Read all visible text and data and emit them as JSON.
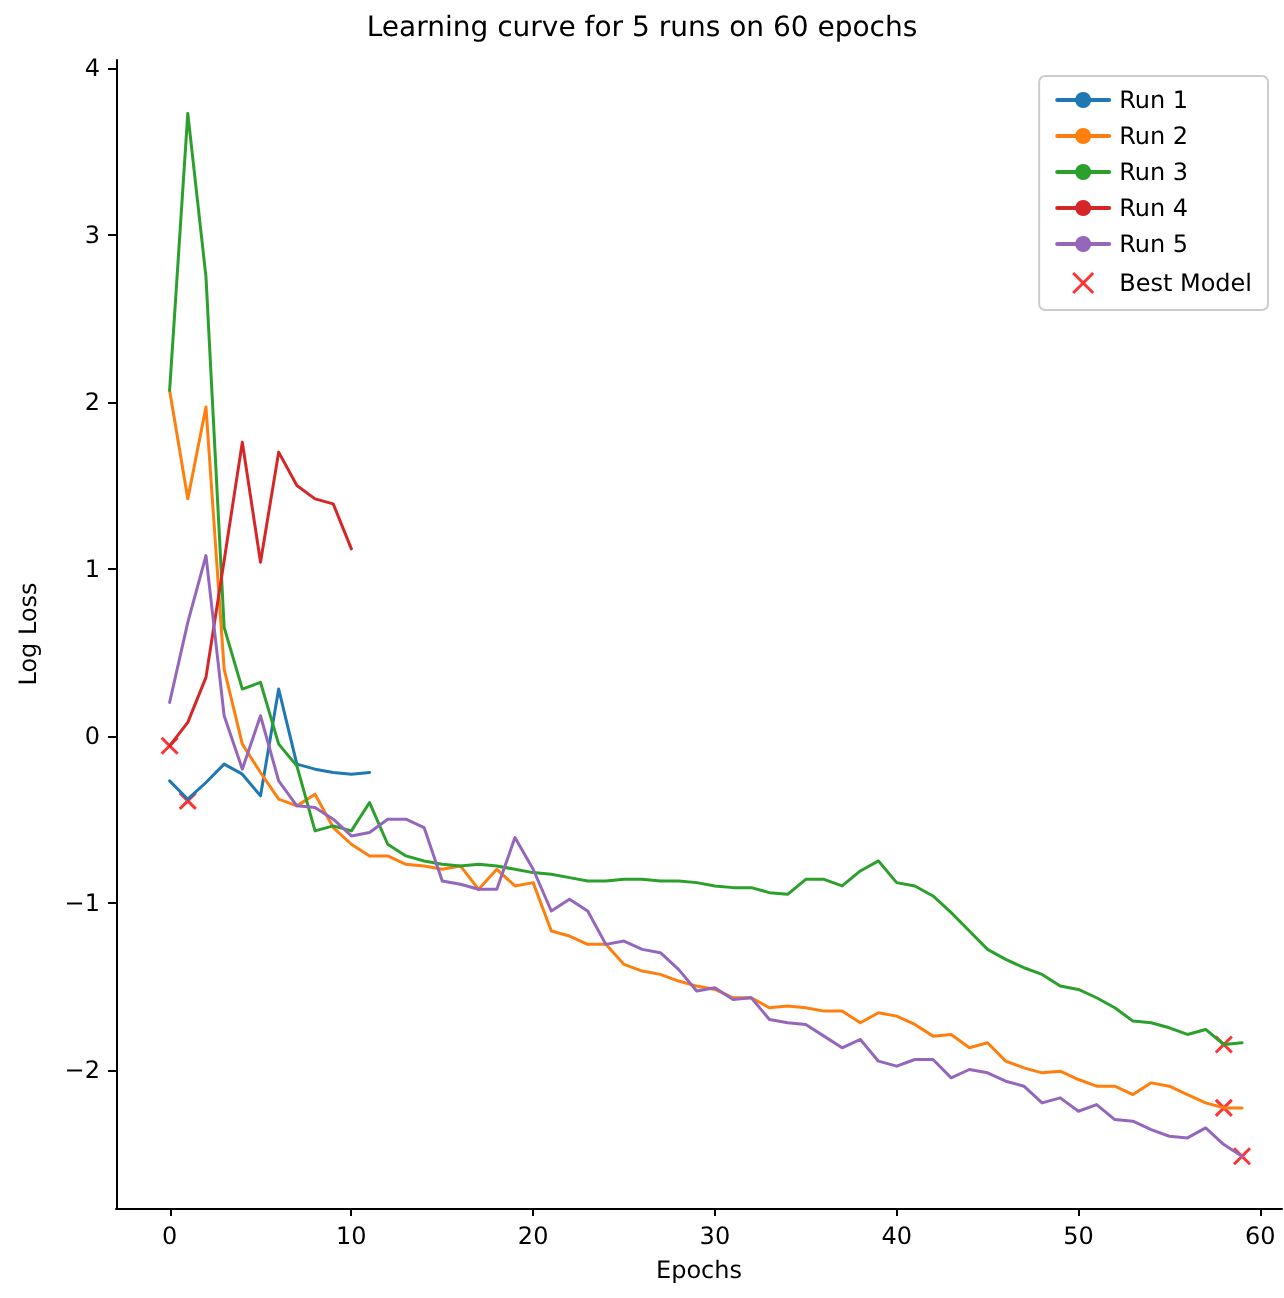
{
  "chart_data": {
    "type": "line",
    "title": "Learning curve for 5 runs on 60 epochs",
    "xlabel": "Epochs",
    "ylabel": "Log Loss",
    "xlim": [
      -2.95,
      61.2
    ],
    "ylim": [
      -2.83,
      4.05
    ],
    "xticks": [
      0,
      10,
      20,
      30,
      40,
      50,
      60
    ],
    "yticks": [
      {
        "value": -2,
        "label": "−2"
      },
      {
        "value": -1,
        "label": "−1"
      },
      0,
      1,
      2,
      3,
      4
    ],
    "grid": false,
    "legend": "top right",
    "marker": "none",
    "line_style": "solid",
    "series": [
      {
        "name": "Run 1",
        "color": "#1f77b4",
        "x": [
          0,
          1,
          2,
          3,
          4,
          5,
          6,
          7,
          8,
          9,
          10,
          11
        ],
        "values": [
          -0.27,
          -0.38,
          -0.28,
          -0.17,
          -0.23,
          -0.36,
          0.28,
          -0.17,
          -0.2,
          -0.22,
          -0.23,
          -0.22
        ]
      },
      {
        "name": "Run 2",
        "color": "#ff7f0e",
        "x": [
          0,
          1,
          2,
          3,
          4,
          5,
          6,
          7,
          8,
          9,
          10,
          11,
          12,
          13,
          14,
          15,
          16,
          17,
          18,
          19,
          20,
          21,
          22,
          23,
          24,
          25,
          26,
          27,
          28,
          29,
          30,
          31,
          32,
          33,
          34,
          35,
          36,
          37,
          38,
          39,
          40,
          41,
          42,
          43,
          44,
          45,
          46,
          47,
          48,
          49,
          50,
          51,
          52,
          53,
          54,
          55,
          56,
          57,
          58,
          59
        ],
        "values": [
          2.07,
          1.42,
          1.97,
          0.4,
          -0.05,
          -0.22,
          -0.38,
          -0.42,
          -0.35,
          -0.55,
          -0.65,
          -0.72,
          -0.72,
          -0.77,
          -0.78,
          -0.8,
          -0.78,
          -0.92,
          -0.8,
          -0.9,
          -0.88,
          -1.17,
          -1.2,
          -1.25,
          -1.25,
          -1.37,
          -1.41,
          -1.43,
          -1.47,
          -1.5,
          -1.52,
          -1.57,
          -1.57,
          -1.63,
          -1.62,
          -1.63,
          -1.65,
          -1.65,
          -1.72,
          -1.66,
          -1.68,
          -1.73,
          -1.8,
          -1.79,
          -1.87,
          -1.84,
          -1.95,
          -1.99,
          -2.02,
          -2.01,
          -2.06,
          -2.1,
          -2.1,
          -2.15,
          -2.08,
          -2.1,
          -2.15,
          -2.2,
          -2.23,
          -2.23
        ]
      },
      {
        "name": "Run 3",
        "color": "#2ca02c",
        "x": [
          0,
          1,
          2,
          3,
          4,
          5,
          6,
          7,
          8,
          9,
          10,
          11,
          12,
          13,
          14,
          15,
          16,
          17,
          18,
          19,
          20,
          21,
          22,
          23,
          24,
          25,
          26,
          27,
          28,
          29,
          30,
          31,
          32,
          33,
          34,
          35,
          36,
          37,
          38,
          39,
          40,
          41,
          42,
          43,
          44,
          45,
          46,
          47,
          48,
          49,
          50,
          51,
          52,
          53,
          54,
          55,
          56,
          57,
          58,
          59
        ],
        "values": [
          2.07,
          3.73,
          2.75,
          0.65,
          0.28,
          0.32,
          -0.05,
          -0.18,
          -0.57,
          -0.54,
          -0.57,
          -0.4,
          -0.65,
          -0.72,
          -0.75,
          -0.77,
          -0.78,
          -0.77,
          -0.78,
          -0.8,
          -0.82,
          -0.83,
          -0.85,
          -0.87,
          -0.87,
          -0.86,
          -0.86,
          -0.87,
          -0.87,
          -0.88,
          -0.9,
          -0.91,
          -0.91,
          -0.94,
          -0.95,
          -0.86,
          -0.86,
          -0.9,
          -0.81,
          -0.75,
          -0.88,
          -0.9,
          -0.96,
          -1.06,
          -1.17,
          -1.28,
          -1.34,
          -1.39,
          -1.43,
          -1.5,
          -1.52,
          -1.57,
          -1.63,
          -1.71,
          -1.72,
          -1.75,
          -1.79,
          -1.76,
          -1.85,
          -1.84
        ]
      },
      {
        "name": "Run 4",
        "color": "#d62728",
        "x": [
          0,
          1,
          2,
          3,
          4,
          5,
          6,
          7,
          8,
          9,
          10
        ],
        "values": [
          -0.06,
          0.08,
          0.35,
          1.05,
          1.76,
          1.04,
          1.7,
          1.5,
          1.42,
          1.39,
          1.12
        ]
      },
      {
        "name": "Run 5",
        "color": "#9467bd",
        "x": [
          0,
          1,
          2,
          3,
          4,
          5,
          6,
          7,
          8,
          9,
          10,
          11,
          12,
          13,
          14,
          15,
          16,
          17,
          18,
          19,
          20,
          21,
          22,
          23,
          24,
          25,
          26,
          27,
          28,
          29,
          30,
          31,
          32,
          33,
          34,
          35,
          36,
          37,
          38,
          39,
          40,
          41,
          42,
          43,
          44,
          45,
          46,
          47,
          48,
          49,
          50,
          51,
          52,
          53,
          54,
          55,
          56,
          57,
          58,
          59
        ],
        "values": [
          0.2,
          0.68,
          1.08,
          0.12,
          -0.2,
          0.12,
          -0.27,
          -0.42,
          -0.43,
          -0.5,
          -0.6,
          -0.58,
          -0.5,
          -0.5,
          -0.55,
          -0.87,
          -0.89,
          -0.92,
          -0.92,
          -0.61,
          -0.8,
          -1.05,
          -0.98,
          -1.05,
          -1.25,
          -1.23,
          -1.28,
          -1.3,
          -1.4,
          -1.53,
          -1.51,
          -1.58,
          -1.57,
          -1.7,
          -1.72,
          -1.73,
          -1.8,
          -1.87,
          -1.82,
          -1.95,
          -1.98,
          -1.94,
          -1.94,
          -2.05,
          -2.0,
          -2.02,
          -2.07,
          -2.1,
          -2.2,
          -2.17,
          -2.25,
          -2.21,
          -2.3,
          -2.31,
          -2.36,
          -2.4,
          -2.41,
          -2.35,
          -2.45,
          -2.52
        ]
      },
      {
        "name": "Best Model",
        "type": "scatter",
        "marker": "cross",
        "color": "#ff0000",
        "x": [
          0,
          1,
          58,
          58,
          59
        ],
        "values": [
          -0.06,
          -0.39,
          -1.85,
          -2.23,
          -2.52
        ]
      }
    ]
  }
}
